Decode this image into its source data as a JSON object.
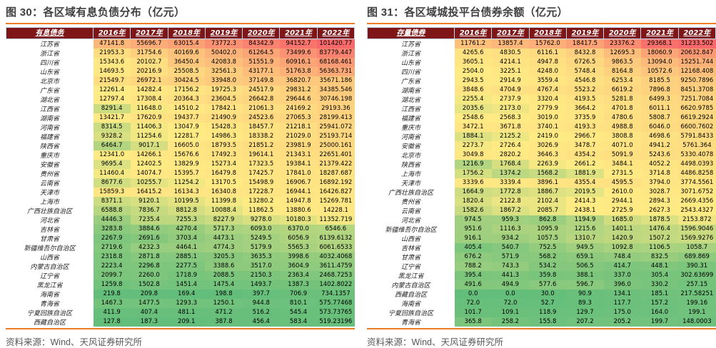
{
  "colors": {
    "heat_min_green": "#63BE7B",
    "heat_mid_yellow": "#FFEB84",
    "heat_max_red": "#F8696B",
    "header_bg": "#7E1517",
    "accent_rule_orange": "#ED7C27",
    "title_color": "#3F3F3F",
    "source_color": "#595959"
  },
  "chart_data": [
    {
      "type": "heatmap",
      "title": "图 30：各区域有息负债分布（亿元）",
      "corner_label": "有息债务",
      "columns": [
        "2016年",
        "2017年",
        "2018年",
        "2019年",
        "2020年",
        "2021年",
        "2022年"
      ],
      "colorscale": {
        "min": "green",
        "mid_50th_percentile": "yellow",
        "max": "red"
      },
      "source": "资料来源：Wind、天风证券研究所",
      "rows": [
        {
          "name": "江苏省",
          "values": [
            "47141.8",
            "55696.7",
            "63015.4",
            "73772.3",
            "84342.9",
            "94152.7",
            "101420.77"
          ]
        },
        {
          "name": "浙江省",
          "values": [
            "21953.3",
            "31754.6",
            "40169.6",
            "50402.0",
            "61264.5",
            "73499.6",
            "83779.447"
          ]
        },
        {
          "name": "四川省",
          "values": [
            "15343.6",
            "20102.7",
            "36450.4",
            "42083.8",
            "51551.9",
            "60916.1",
            "68168.461"
          ]
        },
        {
          "name": "山东省",
          "values": [
            "14693.5",
            "20216.9",
            "25508.5",
            "32561.3",
            "43177.1",
            "51763.8",
            "56363.731"
          ]
        },
        {
          "name": "北京市",
          "values": [
            "21549.7",
            "26972.1",
            "30424.5",
            "33948.0",
            "37149.8",
            "36820.7",
            "35671.186"
          ]
        },
        {
          "name": "广东省",
          "values": [
            "12261.4",
            "14282.4",
            "17156.2",
            "19725.3",
            "24517.9",
            "29831.2",
            "34385.546"
          ]
        },
        {
          "name": "湖北省",
          "values": [
            "12797.4",
            "17308.4",
            "20364.3",
            "23604.5",
            "26642.8",
            "29644.6",
            "30746.198"
          ]
        },
        {
          "name": "江西省",
          "values": [
            "8291.4",
            "11648.0",
            "14510.2",
            "17842.1",
            "21061.3",
            "24169.2",
            "29193.36"
          ]
        },
        {
          "name": "湖南省",
          "values": [
            "13421.7",
            "17620.9",
            "19437.7",
            "21490.9",
            "24523.6",
            "27065.3",
            "28199.413"
          ]
        },
        {
          "name": "河南省",
          "values": [
            "8314.5",
            "11406.3",
            "13047.9",
            "15428.3",
            "18457.7",
            "21218.1",
            "25941.072"
          ]
        },
        {
          "name": "福建省",
          "values": [
            "9328.2",
            "11254.6",
            "12281.7",
            "14986.3",
            "18338.2",
            "21029.0",
            "25193.714"
          ]
        },
        {
          "name": "陕西省",
          "values": [
            "6464.7",
            "9017.1",
            "16605.0",
            "18793.5",
            "21851.2",
            "23981.9",
            "25000.161"
          ]
        },
        {
          "name": "重庆市",
          "values": [
            "12341.0",
            "14266.1",
            "15676.6",
            "17492.3",
            "19614.1",
            "21343.1",
            "22651.401"
          ]
        },
        {
          "name": "安徽省",
          "values": [
            "9695.4",
            "12402.5",
            "13829.9",
            "15273.4",
            "17323.5",
            "19384.1",
            "21379.422"
          ]
        },
        {
          "name": "贵州省",
          "values": [
            "11460.4",
            "14074.7",
            "15395.7",
            "16479.8",
            "17425.7",
            "17841.0",
            "18287.687"
          ]
        },
        {
          "name": "云南省",
          "values": [
            "8677.6",
            "10255.7",
            "11254.2",
            "13170.5",
            "15498.9",
            "16906.7",
            "16892.192"
          ]
        },
        {
          "name": "天津市",
          "values": [
            "15859.3",
            "16415.2",
            "16134.3",
            "16340.8",
            "17228.7",
            "16944.1",
            "16426.827"
          ]
        },
        {
          "name": "上海市",
          "values": [
            "8371.1",
            "9120.1",
            "10199.5",
            "11399.8",
            "13280.2",
            "14947.8",
            "15269.781"
          ]
        },
        {
          "name": "广西壮族自治区",
          "values": [
            "6588.8",
            "7836.7",
            "8812.8",
            "10088.4",
            "11862.5",
            "13880.6",
            "14228.1"
          ]
        },
        {
          "name": "河北省",
          "values": [
            "4446.3",
            "7235.4",
            "7255.3",
            "8227.9",
            "9278.0",
            "10180.3",
            "11352.719"
          ]
        },
        {
          "name": "吉林省",
          "values": [
            "3283.8",
            "3884.6",
            "4270.4",
            "5717.3",
            "6093.0",
            "6370.0",
            "6546.6"
          ]
        },
        {
          "name": "甘肃省",
          "values": [
            "2267.9",
            "2691.6",
            "3703.4",
            "4473.1",
            "5249.5",
            "6056.9",
            "6139.6132"
          ]
        },
        {
          "name": "新疆维吾尔自治区",
          "values": [
            "2719.6",
            "4232.3",
            "4464.1",
            "4774.3",
            "5179.9",
            "5565.3",
            "6061.6533"
          ]
        },
        {
          "name": "山西省",
          "values": [
            "2318.8",
            "2871.8",
            "2885.1",
            "3205.3",
            "3635.3",
            "3998.6",
            "4032.4068"
          ]
        },
        {
          "name": "内蒙古自治区",
          "values": [
            "2223.4",
            "2296.8",
            "2277.5",
            "3388.6",
            "3517.0",
            "3604.9",
            "3611.4759"
          ]
        },
        {
          "name": "辽宁省",
          "values": [
            "2099.7",
            "2260.0",
            "1718.9",
            "2088.5",
            "2150.3",
            "2363.4",
            "2468.7253"
          ]
        },
        {
          "name": "黑龙江省",
          "values": [
            "1259.8",
            "1502.8",
            "1451.4",
            "1475.4",
            "1493.7",
            "1387.3",
            "1402.8022"
          ]
        },
        {
          "name": "海南省",
          "values": [
            "219.8",
            "209.8",
            "169.4",
            "198.8",
            "397.7",
            "706.9",
            "734.1357"
          ]
        },
        {
          "name": "青海省",
          "values": [
            "1467.3",
            "1477.5",
            "1293.3",
            "1250.1",
            "944.8",
            "810.1",
            "575.77468"
          ]
        },
        {
          "name": "宁夏回族自治区",
          "values": [
            "411.9",
            "407.4",
            "481.1",
            "471.2",
            "516.2",
            "545.4",
            "573.73765"
          ]
        },
        {
          "name": "西藏自治区",
          "values": [
            "127.8",
            "187.3",
            "209.1",
            "387.8",
            "456.4",
            "583.4",
            "519.23196"
          ]
        }
      ]
    },
    {
      "type": "heatmap",
      "title": "图 31：各区域城投平台债券余额（亿元）",
      "corner_label": "存量债券",
      "columns": [
        "2016年",
        "2017年",
        "2018年",
        "2019年",
        "2020年",
        "2021年",
        "2022年"
      ],
      "colorscale": {
        "min": "green",
        "mid_50th_percentile": "yellow",
        "max": "red"
      },
      "source": "资料来源：Wind、天风证券研究所",
      "rows": [
        {
          "name": "江苏省",
          "values": [
            "11761.2",
            "13857.4",
            "15762.0",
            "18417.5",
            "23376.2",
            "29368.1",
            "31233.502"
          ]
        },
        {
          "name": "浙江省",
          "values": [
            "4265.6",
            "4830.5",
            "6116.1",
            "8432.8",
            "12695.3",
            "18060.9",
            "20632.847"
          ]
        },
        {
          "name": "山东省",
          "values": [
            "3605.1",
            "4214.1",
            "4947.8",
            "6726.5",
            "9863.5",
            "13094.0",
            "15251.744"
          ]
        },
        {
          "name": "四川省",
          "values": [
            "2504.0",
            "3225.1",
            "4248.0",
            "5748.4",
            "8164.8",
            "10572.6",
            "12168.408"
          ]
        },
        {
          "name": "广东省",
          "values": [
            "2943.5",
            "2914.9",
            "3559.4",
            "4546.8",
            "6253.4",
            "8185.5",
            "9250.7896"
          ]
        },
        {
          "name": "湖南省",
          "values": [
            "3848.6",
            "4704.9",
            "4767.4",
            "5523.2",
            "6619.2",
            "7896.8",
            "8451.3708"
          ]
        },
        {
          "name": "湖北省",
          "values": [
            "2255.4",
            "2737.9",
            "3320.4",
            "4193.5",
            "5281.8",
            "6499.3",
            "7251.7084"
          ]
        },
        {
          "name": "江西省",
          "values": [
            "2035.6",
            "2173.0",
            "2779.9",
            "3664.2",
            "4701.8",
            "6011.1",
            "6620.9785"
          ]
        },
        {
          "name": "福建省",
          "values": [
            "2548.6",
            "2568.3",
            "3019.0",
            "3735.9",
            "4780.6",
            "5808.7",
            "6619.2924"
          ]
        },
        {
          "name": "重庆市",
          "values": [
            "3472.1",
            "3671.8",
            "3740.1",
            "4193.3",
            "4988.8",
            "6046.0",
            "6600.7602"
          ]
        },
        {
          "name": "河南省",
          "values": [
            "1884.1",
            "2125.2",
            "2419.0",
            "2966.7",
            "3808.8",
            "4698.6",
            "5791.8433"
          ]
        },
        {
          "name": "安徽省",
          "values": [
            "2273.7",
            "2726.4",
            "3026.9",
            "3478.7",
            "4071.0",
            "4941.2",
            "5761.364"
          ]
        },
        {
          "name": "北京市",
          "values": [
            "3049.8",
            "2820.2",
            "3646.3",
            "4354.2",
            "5091.9",
            "5243.6",
            "5330.4078"
          ]
        },
        {
          "name": "陕西省",
          "values": [
            "1216.9",
            "1768.4",
            "2263.9",
            "2661.2",
            "3484.1",
            "4052.2",
            "4498.0393"
          ]
        },
        {
          "name": "上海市",
          "values": [
            "1756.2",
            "1374.2",
            "1568.2",
            "1881.9",
            "2731.5",
            "3714.8",
            "4486.8258"
          ]
        },
        {
          "name": "天津市",
          "values": [
            "3339.6",
            "3339.4",
            "3896.1",
            "4355.4",
            "4595.5",
            "3794.0",
            "3774.5561"
          ]
        },
        {
          "name": "广西壮族自治区",
          "values": [
            "1664.9",
            "1772.8",
            "1886.7",
            "2019.5",
            "2610.0",
            "3028.7",
            "3071.6752"
          ]
        },
        {
          "name": "贵州省",
          "values": [
            "1820.4",
            "2122.8",
            "2102.4",
            "2414.3",
            "2944.1",
            "2894.3",
            "2669.4356"
          ]
        },
        {
          "name": "云南省",
          "values": [
            "1582.6",
            "1867.2",
            "2085.7",
            "2438.1",
            "2725.9",
            "2627.3",
            "2543.4327"
          ]
        },
        {
          "name": "河北省",
          "values": [
            "974.5",
            "959.3",
            "862.8",
            "1194.9",
            "1685.0",
            "1878.5",
            "2153.872"
          ]
        },
        {
          "name": "新疆维吾尔自治区",
          "values": [
            "951.6",
            "1116.3",
            "1095.9",
            "1215.6",
            "1401.1",
            "1476.4",
            "1596.9046"
          ]
        },
        {
          "name": "山西省",
          "values": [
            "916.1",
            "934.2",
            "1057.5",
            "1310.7",
            "1420.9",
            "1507.2",
            "1569.9276"
          ]
        },
        {
          "name": "吉林省",
          "values": [
            "405.4",
            "540.7",
            "752.5",
            "949.5",
            "1092.8",
            "1106.5",
            "1058.7"
          ]
        },
        {
          "name": "甘肃省",
          "values": [
            "676.2",
            "571.9",
            "568.2",
            "659.1",
            "748.4",
            "832.5",
            "689.869"
          ]
        },
        {
          "name": "辽宁省",
          "values": [
            "788.2",
            "743.3",
            "534.2",
            "506.5",
            "414.7",
            "448.1",
            "390.31"
          ]
        },
        {
          "name": "黑龙江省",
          "values": [
            "395.4",
            "441.3",
            "359.8",
            "388.1",
            "337.0",
            "305.4",
            "302.63699"
          ]
        },
        {
          "name": "内蒙古自治区",
          "values": [
            "491.6",
            "494.9",
            "577.6",
            "596.7",
            "396.0",
            "330.2",
            "257.15"
          ]
        },
        {
          "name": "西藏自治区",
          "values": [
            "0.0",
            "0.0",
            "30.0",
            "90.9",
            "134.1",
            "185.1",
            "217.58251"
          ]
        },
        {
          "name": "海南省",
          "values": [
            "72.0",
            "72.0",
            "52.7",
            "89.3",
            "117.7",
            "157.2",
            "199.16"
          ]
        },
        {
          "name": "宁夏回族自治区",
          "values": [
            "101.7",
            "109.1",
            "118.9",
            "129.7",
            "175.0",
            "164.0",
            "199.1"
          ]
        },
        {
          "name": "青海省",
          "values": [
            "365.8",
            "258.2",
            "155.8",
            "207.2",
            "205.2",
            "199.7",
            "148.0003"
          ]
        }
      ]
    }
  ]
}
